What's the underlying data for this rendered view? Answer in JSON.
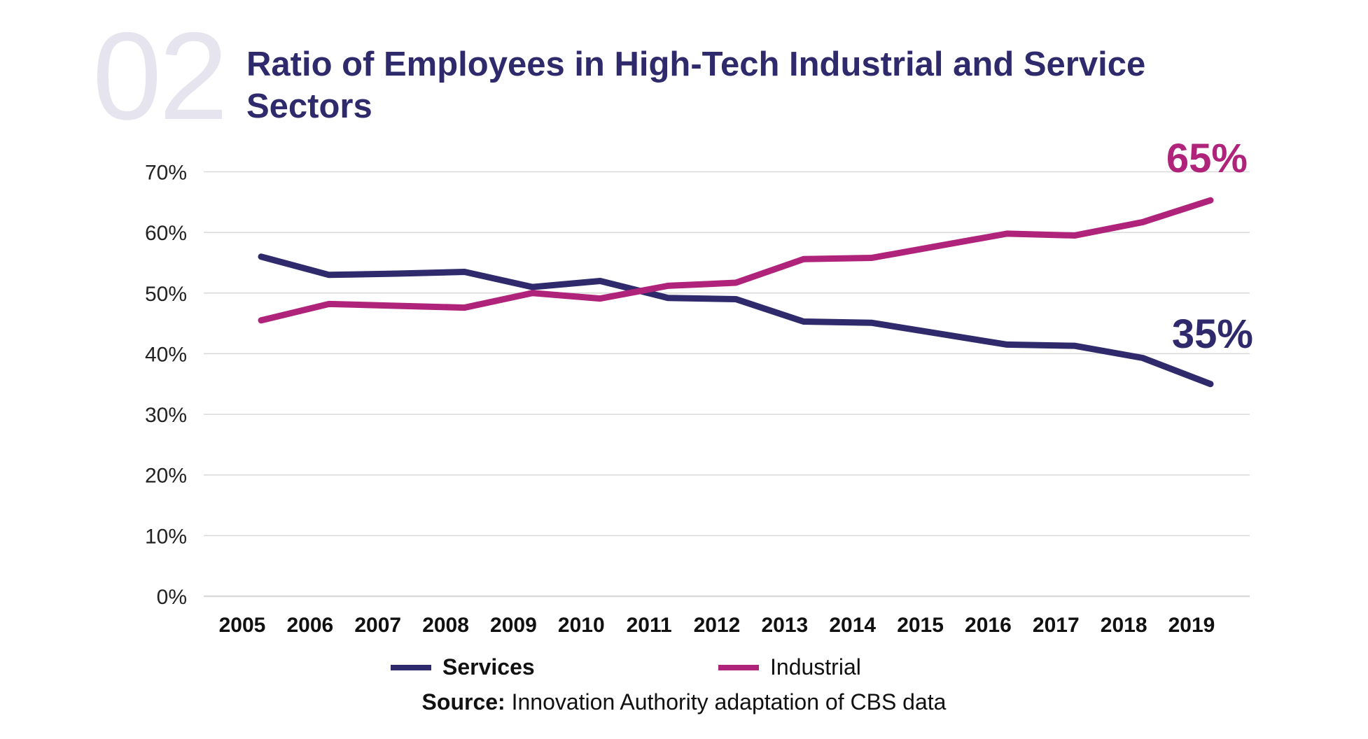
{
  "number": "02",
  "title": "Ratio of Employees in High-Tech Industrial and Service Sectors",
  "colors": {
    "services": "#2e2a6b",
    "industrial": "#b0237a",
    "grid": "#d9d9d9",
    "number": "#e6e4ee"
  },
  "source": {
    "label": "Source:",
    "text": "Innovation Authority adaptation of CBS data"
  },
  "chart_data": {
    "type": "line",
    "title": "Ratio of Employees in High-Tech Industrial and Service Sectors",
    "x": [
      "2005",
      "2006",
      "2007",
      "2008",
      "2009",
      "2010",
      "2011",
      "2012",
      "2013",
      "2014",
      "2015",
      "2016",
      "2017",
      "2018",
      "2019"
    ],
    "ylim": [
      0,
      70
    ],
    "yticks": [
      "0%",
      "10%",
      "20%",
      "30%",
      "40%",
      "50%",
      "60%",
      "70%"
    ],
    "grid": true,
    "legend": "bottom",
    "series": [
      {
        "name": "Services",
        "values": [
          56,
          53,
          53.2,
          53.5,
          51,
          52,
          49.2,
          49,
          45.3,
          45.1,
          43.3,
          41.5,
          41.3,
          39.3,
          35
        ],
        "end_label": "35%"
      },
      {
        "name": "Industrial",
        "values": [
          45.5,
          48.2,
          47.9,
          47.6,
          50,
          49.1,
          51.2,
          51.7,
          55.6,
          55.8,
          57.8,
          59.8,
          59.5,
          61.7,
          65.3
        ],
        "end_label": "65%"
      }
    ]
  }
}
